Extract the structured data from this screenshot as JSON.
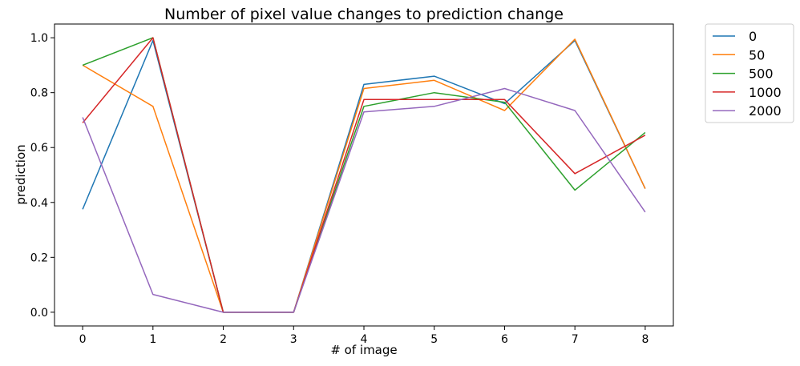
{
  "chart_data": {
    "type": "line",
    "title": "Number of pixel value changes to prediction change",
    "xlabel": "# of image",
    "ylabel": "prediction",
    "x": [
      0,
      1,
      2,
      3,
      4,
      5,
      6,
      7,
      8
    ],
    "xlim": [
      -0.4,
      8.4
    ],
    "ylim": [
      -0.05,
      1.05
    ],
    "xticks": [
      0,
      1,
      2,
      3,
      4,
      5,
      6,
      7,
      8
    ],
    "yticks": [
      0.0,
      0.2,
      0.4,
      0.6,
      0.8,
      1.0
    ],
    "ytick_labels": [
      "0.0",
      "0.2",
      "0.4",
      "0.6",
      "0.8",
      "1.0"
    ],
    "grid": false,
    "legend_position": "outside-right-top",
    "series": [
      {
        "name": "0",
        "color": "#1f77b4",
        "values": [
          0.375,
          0.99,
          0.0,
          0.0,
          0.83,
          0.86,
          0.76,
          0.99,
          0.45
        ]
      },
      {
        "name": "50",
        "color": "#ff7f0e",
        "values": [
          0.9,
          0.75,
          0.0,
          0.0,
          0.815,
          0.845,
          0.735,
          0.995,
          0.45
        ]
      },
      {
        "name": "500",
        "color": "#2ca02c",
        "values": [
          0.9,
          1.0,
          0.0,
          0.0,
          0.75,
          0.8,
          0.765,
          0.445,
          0.655
        ]
      },
      {
        "name": "1000",
        "color": "#d62728",
        "values": [
          0.69,
          1.0,
          0.0,
          0.0,
          0.775,
          0.775,
          0.775,
          0.505,
          0.645
        ]
      },
      {
        "name": "2000",
        "color": "#9467bd",
        "values": [
          0.71,
          0.065,
          0.0,
          0.0,
          0.73,
          0.75,
          0.815,
          0.735,
          0.365
        ]
      }
    ]
  }
}
